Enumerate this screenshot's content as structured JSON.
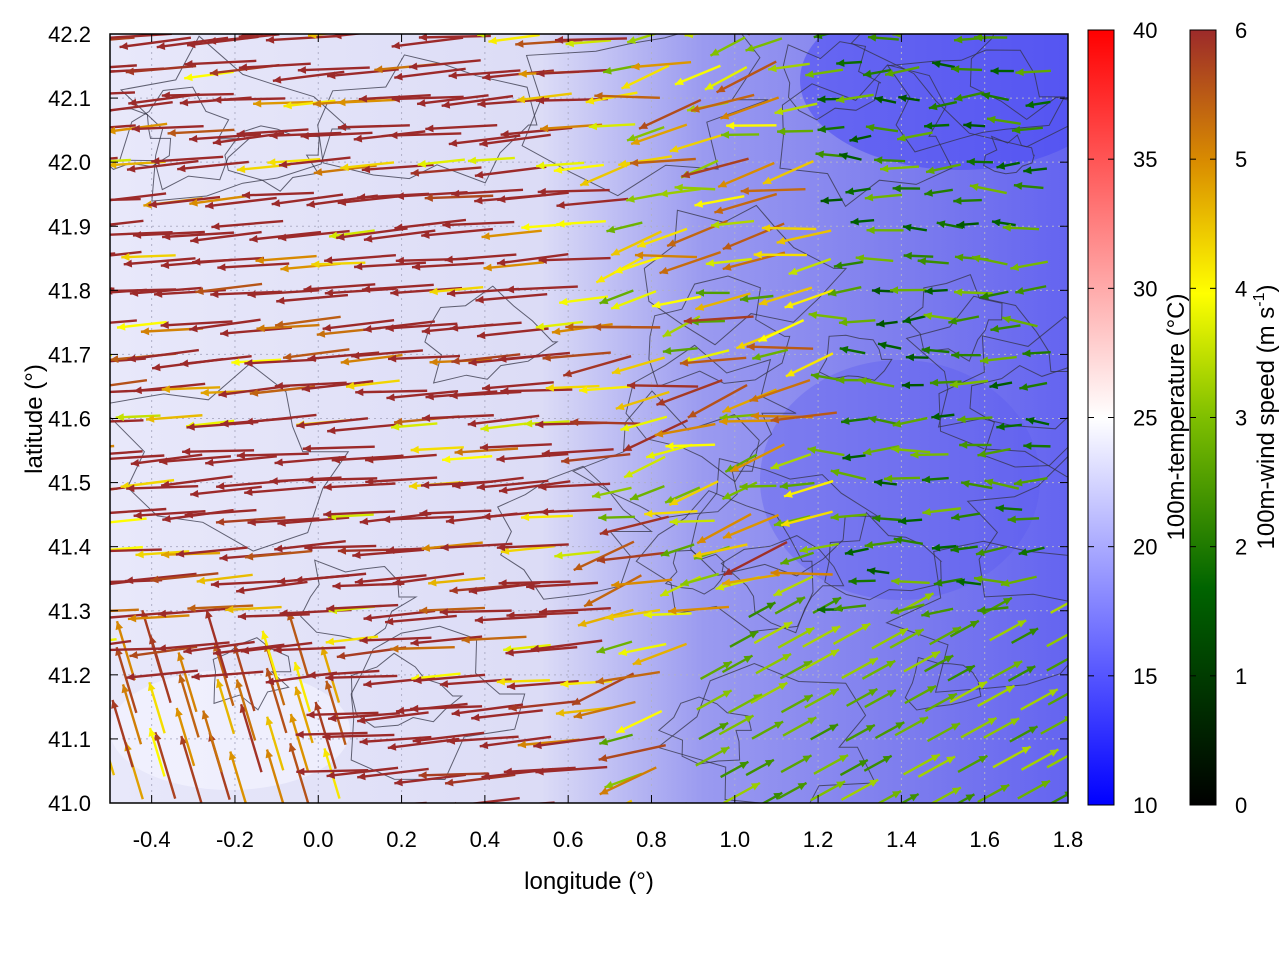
{
  "chart_data": {
    "type": "heatmap",
    "xlabel": "longitude (°)",
    "ylabel": "latitude (°)",
    "xlim": [
      -0.5,
      1.8
    ],
    "ylim": [
      41.0,
      42.2
    ],
    "xticks": [
      "-0.4",
      "-0.2",
      "0.0",
      "0.2",
      "0.4",
      "0.6",
      "0.8",
      "1.0",
      "1.2",
      "1.4",
      "1.6",
      "1.8"
    ],
    "xtick_values": [
      -0.4,
      -0.2,
      0.0,
      0.2,
      0.4,
      0.6,
      0.8,
      1.0,
      1.2,
      1.4,
      1.6,
      1.8
    ],
    "yticks": [
      "41.0",
      "41.1",
      "41.2",
      "41.3",
      "41.4",
      "41.5",
      "41.6",
      "41.7",
      "41.8",
      "41.9",
      "42.0",
      "42.1",
      "42.2"
    ],
    "ytick_values": [
      41.0,
      41.1,
      41.2,
      41.3,
      41.4,
      41.5,
      41.6,
      41.7,
      41.8,
      41.9,
      42.0,
      42.1,
      42.2
    ],
    "grid": true,
    "layers": {
      "background": "100m-temperature field (color map)",
      "vectors": "100m-wind arrows colored by speed",
      "contours": "terrain height contour lines"
    },
    "colorbars": [
      {
        "name": "temperature",
        "label": "100m-temperature (°C)",
        "range": [
          10,
          40
        ],
        "ticks": [
          "10",
          "15",
          "20",
          "25",
          "30",
          "35",
          "40"
        ],
        "tick_values": [
          10,
          15,
          20,
          25,
          30,
          35,
          40
        ],
        "colors": [
          "#0000ff",
          "#ffffff",
          "#ff0000"
        ]
      },
      {
        "name": "wind_speed",
        "label_main": "100m-wind speed (m s",
        "label_sup": "-1",
        "label_end": ")",
        "range": [
          0,
          6
        ],
        "ticks": [
          "0",
          "1",
          "2",
          "3",
          "4",
          "5",
          "6"
        ],
        "tick_values": [
          0,
          1,
          2,
          3,
          4,
          5,
          6
        ],
        "colors": [
          "#000000",
          "#006400",
          "#7fbf00",
          "#ffff00",
          "#d98c00",
          "#b03a2e",
          "#9c2a2a"
        ]
      }
    ],
    "temperature_regions_approx": [
      {
        "region": "west (lon < 0.6)",
        "temp_c": 22
      },
      {
        "region": "east (lon > 0.9)",
        "temp_c": 17
      },
      {
        "region": "northeast corner",
        "temp_c": 14
      }
    ],
    "wind_regions_approx": [
      {
        "region": "west, lat 41.1-42.0",
        "speed_ms": 6,
        "direction": "from east (westward flow)"
      },
      {
        "region": "southeast (lon > 0.9, lat < 41.3)",
        "speed_ms": 2.5,
        "direction": "toward northeast"
      },
      {
        "region": "east, lat 41.3-42.1",
        "speed_ms": 2,
        "direction": "westward"
      }
    ]
  }
}
